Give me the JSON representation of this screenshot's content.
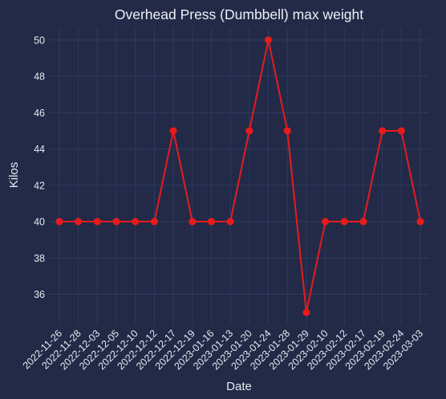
{
  "chart_data": {
    "type": "line",
    "title": "Overhead Press (Dumbbell) max weight",
    "xlabel": "Date",
    "ylabel": "Kilos",
    "categories": [
      "2022-11-26",
      "2022-11-28",
      "2022-12-03",
      "2022-12-05",
      "2022-12-10",
      "2022-12-12",
      "2022-12-17",
      "2022-12-19",
      "2023-01-16",
      "2023-01-13",
      "2023-01-20",
      "2023-01-24",
      "2023-01-28",
      "2023-01-29",
      "2023-02-10",
      "2023-02-12",
      "2023-02-17",
      "2023-02-19",
      "2023-02-24",
      "2023-03-03"
    ],
    "series": [
      {
        "name": "Overhead Press (Dumbbell)",
        "values": [
          40,
          40,
          40,
          40,
          40,
          40,
          45,
          40,
          40,
          40,
          45,
          50,
          45,
          35,
          40,
          40,
          40,
          45,
          45,
          40
        ]
      }
    ],
    "ylim": [
      34.3,
      50.7
    ],
    "yticks": [
      36,
      38,
      40,
      42,
      44,
      46,
      48,
      50
    ],
    "grid": true,
    "colors": {
      "background": "#222a48",
      "grid": "#2e3a60",
      "line": "#e81b1b",
      "text": "#e6e8ef"
    }
  }
}
